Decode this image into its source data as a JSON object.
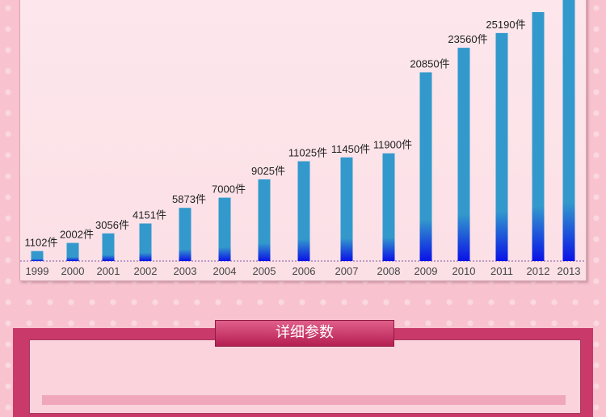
{
  "chart_data": {
    "type": "bar",
    "categories": [
      "1999",
      "2000",
      "2001",
      "2002",
      "2003",
      "2004",
      "2005",
      "2006",
      "2007",
      "2008",
      "2009",
      "2010",
      "2011",
      "2012",
      "2013"
    ],
    "values": [
      1102,
      2002,
      3056,
      4151,
      5873,
      7000,
      9025,
      11025,
      11450,
      11900,
      20850,
      23560,
      25190,
      27500,
      29500
    ],
    "labels": [
      "1102件",
      "2002件",
      "3056件",
      "4151件",
      "5873件",
      "7000件",
      "9025件",
      "11025件",
      "11450件",
      "11900件",
      "20850件",
      "23560件",
      "25190件",
      "",
      ""
    ],
    "title": "",
    "xlabel": "",
    "ylabel": "",
    "grid": false,
    "bar_color_top": "#3399cc",
    "bar_color_bottom": "#0a10e0"
  },
  "section": {
    "title": "详细参数"
  }
}
